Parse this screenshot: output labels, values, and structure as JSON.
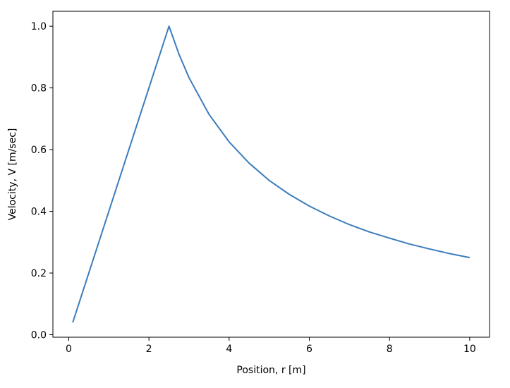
{
  "chart_data": {
    "type": "line",
    "title": "",
    "xlabel": "Position, r [m]",
    "ylabel": "Velocity, V [m/sec]",
    "xlim": [
      -0.395,
      10.495
    ],
    "ylim": [
      -0.008,
      1.0483
    ],
    "xticks": [
      0,
      2,
      4,
      6,
      8,
      10
    ],
    "yticks": [
      0.0,
      0.2,
      0.4,
      0.6,
      0.8,
      1.0
    ],
    "xtick_labels": [
      "0",
      "2",
      "4",
      "6",
      "8",
      "10"
    ],
    "ytick_labels": [
      "0.0",
      "0.2",
      "0.4",
      "0.6",
      "0.8",
      "1.0"
    ],
    "grid": false,
    "series": [
      {
        "color": "#3b7dbd",
        "x": [
          0.1,
          0.5,
          1.0,
          1.5,
          2.0,
          2.5,
          2.75,
          3.0,
          3.5,
          4.0,
          4.5,
          5.0,
          5.5,
          6.0,
          6.5,
          7.0,
          7.5,
          8.0,
          8.5,
          9.0,
          9.5,
          10.0
        ],
        "y": [
          0.04,
          0.2,
          0.4,
          0.6,
          0.8,
          1.0,
          0.909,
          0.833,
          0.714,
          0.625,
          0.556,
          0.5,
          0.455,
          0.417,
          0.385,
          0.357,
          0.333,
          0.313,
          0.294,
          0.278,
          0.263,
          0.25
        ]
      }
    ]
  }
}
